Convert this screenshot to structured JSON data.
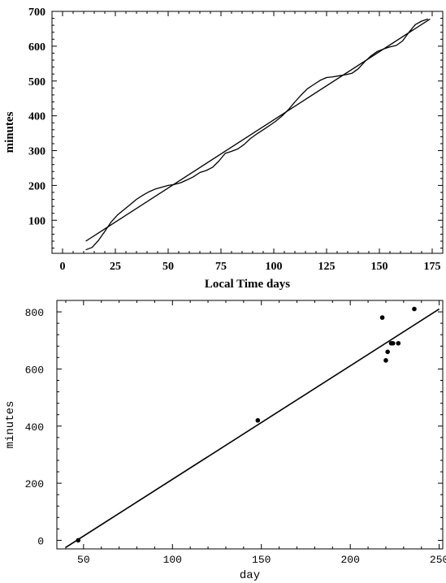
{
  "chart_data": [
    {
      "type": "line",
      "xlabel": "Local Time   days",
      "ylabel": "minutes",
      "xlim": [
        -5,
        180
      ],
      "ylim": [
        5,
        700
      ],
      "xticks": [
        0,
        25,
        50,
        75,
        100,
        125,
        150,
        175
      ],
      "yticks": [
        100,
        200,
        300,
        400,
        500,
        600,
        700
      ],
      "grid": false,
      "series": [
        {
          "x": [
            11,
            14,
            17,
            20,
            23,
            26,
            29,
            32,
            35,
            38,
            41,
            44,
            47,
            50,
            53,
            56,
            59,
            62,
            65,
            68,
            71,
            74,
            77,
            80,
            83,
            86,
            89,
            92,
            95,
            98,
            101,
            104,
            107,
            110,
            113,
            116,
            119,
            122,
            125,
            128,
            131,
            134,
            137,
            140,
            143,
            146,
            149,
            152,
            155,
            158,
            161,
            164,
            167,
            170,
            173
          ],
          "y": [
            15,
            22,
            42,
            68,
            95,
            115,
            130,
            145,
            160,
            172,
            182,
            190,
            195,
            200,
            203,
            208,
            216,
            225,
            237,
            243,
            252,
            270,
            292,
            298,
            305,
            318,
            335,
            348,
            360,
            372,
            385,
            400,
            418,
            440,
            460,
            478,
            490,
            502,
            510,
            512,
            515,
            518,
            522,
            535,
            555,
            572,
            585,
            592,
            598,
            602,
            615,
            640,
            662,
            672,
            678
          ]
        },
        {
          "x": [
            11,
            174
          ],
          "y": [
            40,
            678
          ]
        }
      ]
    },
    {
      "type": "scatter",
      "xlabel": "day",
      "ylabel": "minutes",
      "xlim": [
        35,
        252
      ],
      "ylim": [
        -30,
        840
      ],
      "xticks": [
        50,
        100,
        150,
        200,
        250
      ],
      "yticks": [
        0,
        200,
        400,
        600,
        800
      ],
      "grid": false,
      "series": [
        {
          "x": [
            47,
            148,
            218,
            220,
            221,
            223,
            224,
            227,
            236
          ],
          "y": [
            0,
            420,
            780,
            630,
            660,
            690,
            690,
            690,
            810
          ]
        },
        {
          "x": [
            40,
            250
          ],
          "y": [
            -25,
            810
          ]
        }
      ]
    }
  ]
}
